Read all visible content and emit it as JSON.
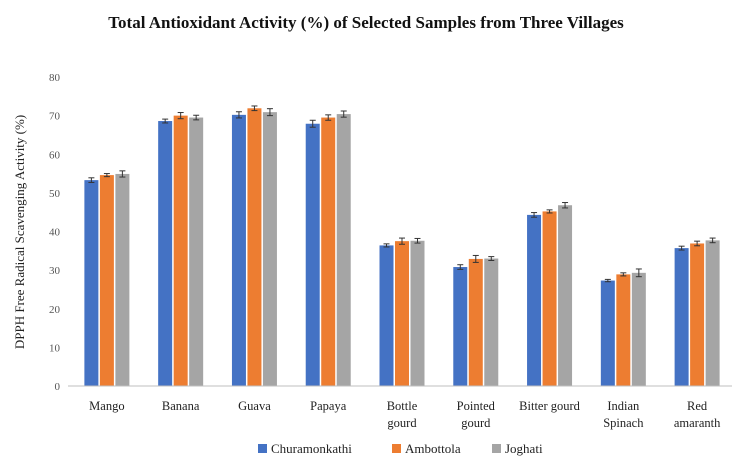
{
  "chart_data": {
    "type": "bar",
    "title": "Total Antioxidant Activity (%) of Selected Samples from Three Villages",
    "xlabel": "",
    "ylabel": "DPPH Free Radical Scavenging Activity (%)",
    "ylim": [
      0,
      80
    ],
    "yticks": [
      0,
      10,
      20,
      30,
      40,
      50,
      60,
      70,
      80
    ],
    "grid": false,
    "legend_position": "bottom",
    "categories": [
      [
        "Mango"
      ],
      [
        "Banana"
      ],
      [
        "Guava"
      ],
      [
        "Papaya"
      ],
      [
        "Bottle",
        "gourd"
      ],
      [
        "Pointed",
        "gourd"
      ],
      [
        "Bitter gourd"
      ],
      [
        "Indian",
        "Spinach"
      ],
      [
        "Red",
        "amaranth"
      ]
    ],
    "series": [
      {
        "name": "Churamonkathi",
        "color": "#4472C4",
        "values": [
          53.3,
          68.6,
          70.2,
          67.9,
          36.4,
          30.8,
          44.3,
          27.3,
          35.7
        ],
        "errors": [
          0.6,
          0.5,
          0.8,
          0.9,
          0.4,
          0.6,
          0.6,
          0.3,
          0.5
        ]
      },
      {
        "name": "Ambottola",
        "color": "#ED7D31",
        "values": [
          54.6,
          70.0,
          71.9,
          69.5,
          37.5,
          32.9,
          45.2,
          28.9,
          36.9
        ],
        "errors": [
          0.4,
          0.8,
          0.6,
          0.7,
          0.8,
          0.9,
          0.4,
          0.4,
          0.6
        ]
      },
      {
        "name": "Joghati",
        "color": "#A5A5A5",
        "values": [
          54.9,
          69.5,
          70.9,
          70.4,
          37.6,
          33.0,
          46.8,
          29.3,
          37.7
        ],
        "errors": [
          0.8,
          0.6,
          0.9,
          0.8,
          0.6,
          0.5,
          0.7,
          1.0,
          0.6
        ]
      }
    ]
  }
}
